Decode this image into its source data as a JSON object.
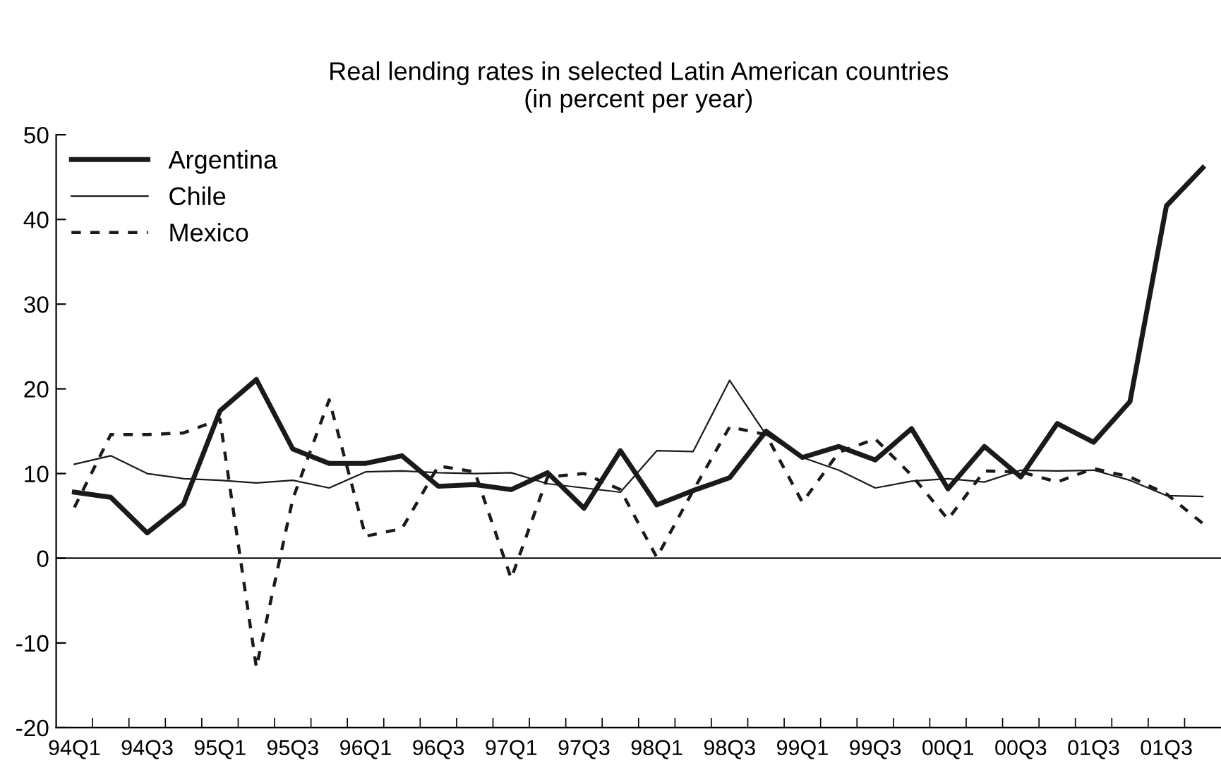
{
  "chart_data": {
    "type": "line",
    "title": "Real lending rates in selected Latin American countries\n(in percent per year)",
    "categories": [
      "94Q1",
      null,
      "94Q3",
      null,
      "95Q1",
      null,
      "95Q3",
      null,
      "96Q1",
      null,
      "96Q3",
      null,
      "97Q1",
      null,
      "97Q3",
      null,
      "98Q1",
      null,
      "98Q3",
      null,
      "99Q1",
      null,
      "99Q3",
      null,
      "00Q1",
      null,
      "00Q3",
      null,
      "01Q3",
      null,
      "01Q3",
      null
    ],
    "series": [
      {
        "name": "Argentina",
        "color": "#1a1a1a",
        "line_style": "solid",
        "values": [
          7.8,
          7.2,
          3.0,
          6.4,
          17.4,
          21.1,
          12.9,
          11.2,
          11.2,
          12.1,
          8.5,
          8.7,
          8.1,
          10.1,
          5.9,
          12.7,
          6.3,
          8.0,
          9.5,
          15.0,
          11.9,
          13.2,
          11.6,
          15.3,
          8.2,
          13.2,
          9.6,
          15.9,
          13.7,
          18.5,
          41.6,
          46.1
        ]
      },
      {
        "name": "Chile",
        "color": "#1a1a1a",
        "line_style": "solid",
        "values": [
          11.1,
          12.1,
          10.0,
          9.4,
          9.2,
          8.9,
          9.2,
          8.3,
          10.2,
          10.3,
          10.1,
          10.0,
          10.1,
          8.8,
          8.3,
          7.8,
          12.7,
          12.6,
          21.0,
          14.6,
          11.9,
          10.4,
          8.3,
          9.1,
          9.4,
          9.0,
          10.4,
          10.3,
          10.4,
          9.2,
          7.4,
          7.3
        ]
      },
      {
        "name": "Mexico",
        "color": "#1a1a1a",
        "line_style": "dashed",
        "values": [
          6.0,
          14.6,
          14.6,
          14.8,
          16.4,
          -12.9,
          7.0,
          18.7,
          2.6,
          3.5,
          10.9,
          10.2,
          -2.4,
          9.6,
          10.0,
          8.1,
          0.1,
          8.0,
          15.5,
          14.6,
          6.6,
          12.5,
          14.1,
          9.8,
          4.6,
          10.3,
          10.2,
          9.0,
          10.6,
          9.6,
          7.6,
          4.1
        ]
      }
    ],
    "ylim": [
      -20,
      50
    ],
    "yticks": [
      -20,
      -10,
      0,
      10,
      20,
      30,
      40,
      50
    ],
    "ref_lines": [
      {
        "axis": "y",
        "value": 0
      }
    ],
    "legend": "top left",
    "grid": false
  }
}
